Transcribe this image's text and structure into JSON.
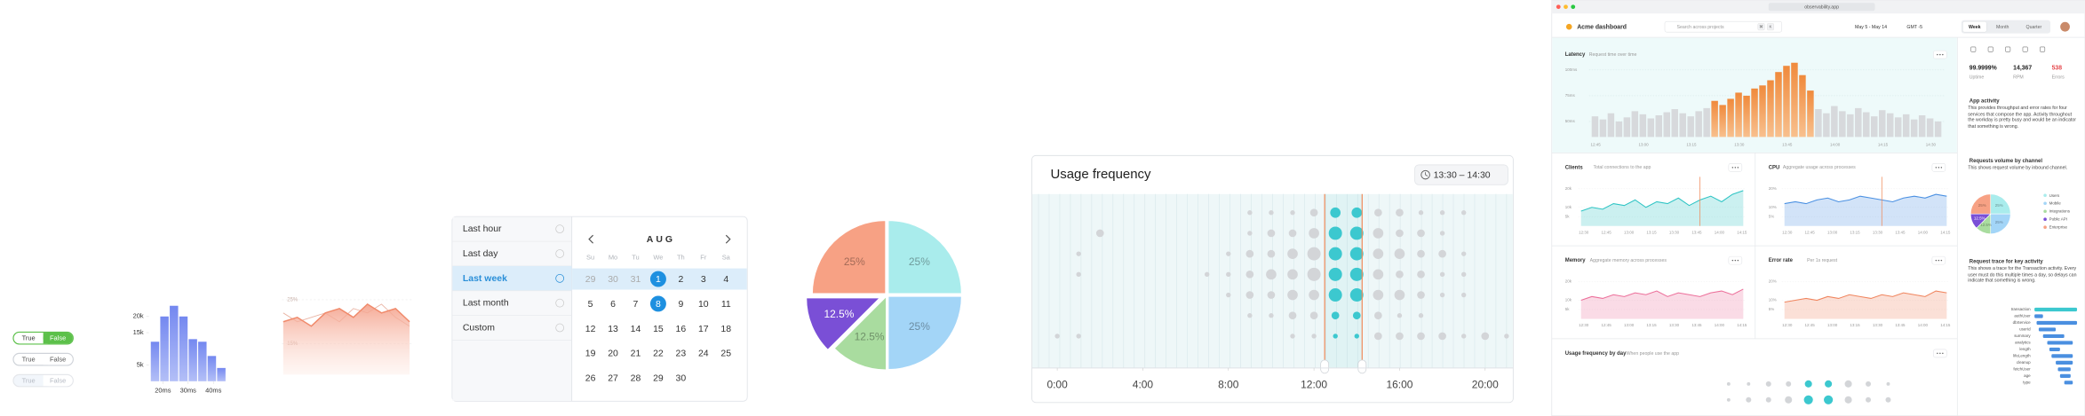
{
  "toggles": [
    {
      "on": "True",
      "off": "False"
    },
    {
      "on": "True",
      "off": "False"
    },
    {
      "on": "True",
      "off": "False"
    }
  ],
  "histogram": {
    "values": [
      12200,
      20000,
      23300,
      20000,
      13000,
      12200,
      7800,
      4100
    ],
    "bins": [
      15,
      18.75,
      22.5,
      26.25,
      30,
      33.75,
      37.5,
      41.25,
      45
    ],
    "xlim": [
      15,
      45
    ],
    "ylim": [
      0,
      25000
    ],
    "yticks": [
      {
        "value": 20000,
        "label": "20k"
      },
      {
        "value": 15000,
        "label": "15k"
      },
      {
        "value": 5000,
        "label": "5k"
      }
    ],
    "xticks": [
      {
        "value": 20,
        "label": "20ms"
      },
      {
        "value": 30,
        "label": "30ms"
      },
      {
        "value": 40,
        "label": "40ms"
      }
    ]
  },
  "area": {
    "ylim": [
      8,
      30
    ],
    "yticks": [
      {
        "value": 25,
        "label": "25%"
      },
      {
        "value": 15,
        "label": "15%"
      }
    ],
    "series": [
      {
        "color": "#f08a6b",
        "values": [
          20,
          21,
          19,
          22,
          23,
          21,
          24,
          22,
          23,
          20
        ]
      },
      {
        "color": "#e9b3a3",
        "values": [
          22,
          20,
          21,
          22,
          20,
          23,
          22,
          24,
          21,
          19
        ]
      }
    ]
  },
  "datepicker": {
    "options": [
      "Last hour",
      "Last day",
      "Last week",
      "Last month",
      "Custom"
    ],
    "selected_option": 2,
    "month": "AUG",
    "weekdays": [
      "Su",
      "Mo",
      "Tu",
      "We",
      "Th",
      "Fr",
      "Sa"
    ],
    "weeks": [
      [
        29,
        30,
        31,
        1,
        2,
        3,
        4
      ],
      [
        5,
        6,
        7,
        8,
        9,
        10,
        11
      ],
      [
        12,
        13,
        14,
        15,
        16,
        17,
        18
      ],
      [
        19,
        20,
        21,
        22,
        23,
        24,
        25
      ],
      [
        26,
        27,
        28,
        29,
        30
      ]
    ],
    "selected_days": [
      1,
      8
    ]
  },
  "pie": {
    "values": [
      25,
      25,
      12.5,
      12.5,
      25
    ],
    "labels": [
      "25%",
      "25%",
      "12.5%",
      "12.5%",
      "25%"
    ],
    "colors": [
      "#a9ecec",
      "#a3d5f7",
      "#a9dc9f",
      "#7a4fd6",
      "#f7a184"
    ],
    "highlight": 3
  },
  "usage": {
    "title": "Usage frequency",
    "range_label": "13:30 – 14:30",
    "xlim": [
      -1,
      21.25
    ],
    "selection": [
      12.5,
      14.25
    ],
    "xticks": [
      {
        "value": 0,
        "label": "0:00"
      },
      {
        "value": 4,
        "label": "4:00"
      },
      {
        "value": 8,
        "label": "8:00"
      },
      {
        "value": 12,
        "label": "12:00"
      },
      {
        "value": 16,
        "label": "16:00"
      },
      {
        "value": 20,
        "label": "20:00"
      }
    ],
    "rows": [
      [
        0,
        0,
        0,
        0,
        0,
        0,
        0,
        0,
        0,
        1,
        1,
        1,
        2,
        3,
        3,
        2,
        2,
        1,
        1,
        1,
        0,
        0
      ],
      [
        0,
        0,
        2,
        0,
        0,
        0,
        0,
        0,
        0,
        1,
        2,
        2,
        3,
        4,
        4,
        3,
        2,
        2,
        1,
        0,
        0,
        0
      ],
      [
        0,
        1,
        0,
        0,
        0,
        0,
        0,
        0,
        1,
        2,
        2,
        3,
        4,
        4,
        4,
        3,
        3,
        2,
        2,
        1,
        0,
        0
      ],
      [
        0,
        1,
        0,
        0,
        0,
        0,
        0,
        1,
        1,
        2,
        3,
        3,
        4,
        4,
        4,
        3,
        2,
        2,
        1,
        1,
        0,
        0
      ],
      [
        0,
        0,
        0,
        0,
        0,
        0,
        0,
        0,
        1,
        2,
        2,
        3,
        3,
        4,
        4,
        3,
        3,
        2,
        1,
        1,
        0,
        0
      ],
      [
        0,
        0,
        0,
        0,
        0,
        0,
        0,
        0,
        0,
        1,
        1,
        2,
        2,
        2,
        2,
        2,
        1,
        1,
        0,
        0,
        0,
        0
      ],
      [
        1,
        1,
        0,
        0,
        0,
        0,
        0,
        0,
        0,
        0,
        0,
        1,
        1,
        1,
        1,
        2,
        2,
        2,
        2,
        1,
        2,
        1
      ]
    ]
  },
  "dashboard": {
    "url": "observability.app",
    "title": "Acme dashboard",
    "search": "Search across projects",
    "keys": [
      "⌘",
      "K"
    ],
    "date_range": "May 5 - May 14",
    "timezone": "GMT -5",
    "tabs": [
      "Week",
      "Month",
      "Quarter"
    ],
    "active_tab": 0,
    "latency": {
      "title": "Latency",
      "subtitle": "Request time over time",
      "ylim": [
        35,
        120
      ],
      "highlight": [
        15,
        27
      ],
      "yticks": [
        {
          "value": 100,
          "label": "100ms"
        },
        {
          "value": 75,
          "label": "75ms"
        },
        {
          "value": 50,
          "label": "50ms"
        }
      ],
      "values": [
        55,
        52,
        58,
        50,
        54,
        60,
        57,
        53,
        56,
        59,
        62,
        58,
        55,
        60,
        63,
        70,
        66,
        72,
        78,
        75,
        82,
        85,
        90,
        98,
        104,
        107,
        95,
        80,
        62,
        58,
        65,
        60,
        57,
        63,
        59,
        55,
        61,
        58,
        54,
        57,
        52,
        56,
        53,
        50
      ],
      "xticks": [
        "12:45",
        "13:00",
        "13:15",
        "13:30",
        "13:45",
        "14:00",
        "14:15",
        "14:30"
      ]
    },
    "stats": [
      {
        "value": "99.9999%",
        "label": "Uptime"
      },
      {
        "value": "14,367",
        "label": "RPM"
      },
      {
        "value": "538",
        "label": "Errors"
      }
    ],
    "mini_xticks": [
      "12:30",
      "12:45",
      "13:00",
      "13:15",
      "13:30",
      "13:45",
      "14:00",
      "14:15"
    ],
    "panels": [
      {
        "title": "Clients",
        "subtitle": "Total connections to the app",
        "color": "#2ec4c4",
        "ylim": [
          0,
          25
        ],
        "marker": 11,
        "yticks": [
          {
            "value": 20,
            "label": "20k"
          },
          {
            "value": 10,
            "label": "10k"
          },
          {
            "value": 5,
            "label": "5k"
          }
        ],
        "values": [
          8,
          10,
          9,
          12,
          11,
          14,
          10,
          13,
          12,
          15,
          11,
          14,
          16,
          13,
          17,
          19
        ]
      },
      {
        "title": "CPU",
        "subtitle": "Aggregate usage across processes",
        "color": "#4a90e2",
        "ylim": [
          0,
          25
        ],
        "marker": 9,
        "yticks": [
          {
            "value": 20,
            "label": "20%"
          },
          {
            "value": 10,
            "label": "10%"
          },
          {
            "value": 5,
            "label": "5%"
          }
        ],
        "values": [
          12,
          13,
          12,
          14,
          15,
          13,
          14,
          16,
          15,
          14,
          13,
          15,
          16,
          15,
          17,
          16
        ]
      },
      {
        "title": "Memory",
        "subtitle": "Aggregate memory across processes",
        "color": "#ec6f9a",
        "ylim": [
          0,
          25
        ],
        "yticks": [
          {
            "value": 20,
            "label": "20k"
          },
          {
            "value": 10,
            "label": "10k"
          },
          {
            "value": 5,
            "label": "5k"
          }
        ],
        "values": [
          10,
          12,
          11,
          13,
          12,
          14,
          13,
          15,
          12,
          14,
          13,
          12,
          14,
          15,
          13,
          16
        ]
      },
      {
        "title": "Error rate",
        "subtitle": "Per 1s request",
        "color": "#f0855e",
        "ylim": [
          0,
          25
        ],
        "yticks": [
          {
            "value": 20,
            "label": "20%"
          },
          {
            "value": 10,
            "label": "10%"
          },
          {
            "value": 5,
            "label": "5%"
          }
        ],
        "values": [
          9,
          10,
          11,
          10,
          12,
          11,
          13,
          12,
          11,
          13,
          12,
          14,
          13,
          12,
          15,
          14
        ]
      }
    ],
    "usage_by_day": {
      "title": "Usage frequency by day",
      "subtitle": "When people use the app",
      "selection": [
        3.5,
        5.5
      ],
      "rows": [
        [
          1,
          1,
          2,
          2,
          3,
          3,
          3,
          2,
          1
        ],
        [
          1,
          2,
          2,
          3,
          4,
          4,
          3,
          2,
          2
        ]
      ]
    },
    "sidebar": {
      "app_activity": {
        "title": "App activity",
        "text": "This provides throughput and error rates for four services that compose the app. Activity throughout the workday is pretty busy and would be an indicator that something is wrong."
      },
      "channels": {
        "title": "Requests volume by channel",
        "text": "This shows request volume by inbound channel.",
        "values": [
          25,
          25,
          12.5,
          12.5,
          25
        ],
        "labels": [
          "25%",
          "25%",
          "12.5%",
          "12.5%",
          "25%"
        ],
        "legend": [
          "Users",
          "Mobile",
          "Integrations",
          "Public API",
          "Enterprise"
        ],
        "colors": [
          "#a9ecec",
          "#a3d5f7",
          "#a9dc9f",
          "#7a4fd6",
          "#f7a184"
        ]
      },
      "trace": {
        "title": "Request trace for key activity",
        "text": "This shows a trace for the Transaction activity. Every user must do this multiple times a day, so delays can indicate that something is wrong.",
        "xlim": [
          0,
          100
        ],
        "spans": [
          {
            "name": "transaction",
            "start": 0,
            "duration": 100
          },
          {
            "name": "authUser",
            "start": 0,
            "duration": 20
          },
          {
            "name": "dbService",
            "start": 5,
            "duration": 95
          },
          {
            "name": "userId",
            "start": 10,
            "duration": 40
          },
          {
            "name": "summary",
            "start": 20,
            "duration": 50
          },
          {
            "name": "analytics",
            "start": 30,
            "duration": 60
          },
          {
            "name": "length",
            "start": 35,
            "duration": 25
          },
          {
            "name": "lifeLength",
            "start": 40,
            "duration": 50
          },
          {
            "name": "cleanup",
            "start": 50,
            "duration": 40
          },
          {
            "name": "fetchUser",
            "start": 55,
            "duration": 30
          },
          {
            "name": "age",
            "start": 60,
            "duration": 25
          },
          {
            "name": "type",
            "start": 70,
            "duration": 20
          }
        ]
      }
    }
  }
}
